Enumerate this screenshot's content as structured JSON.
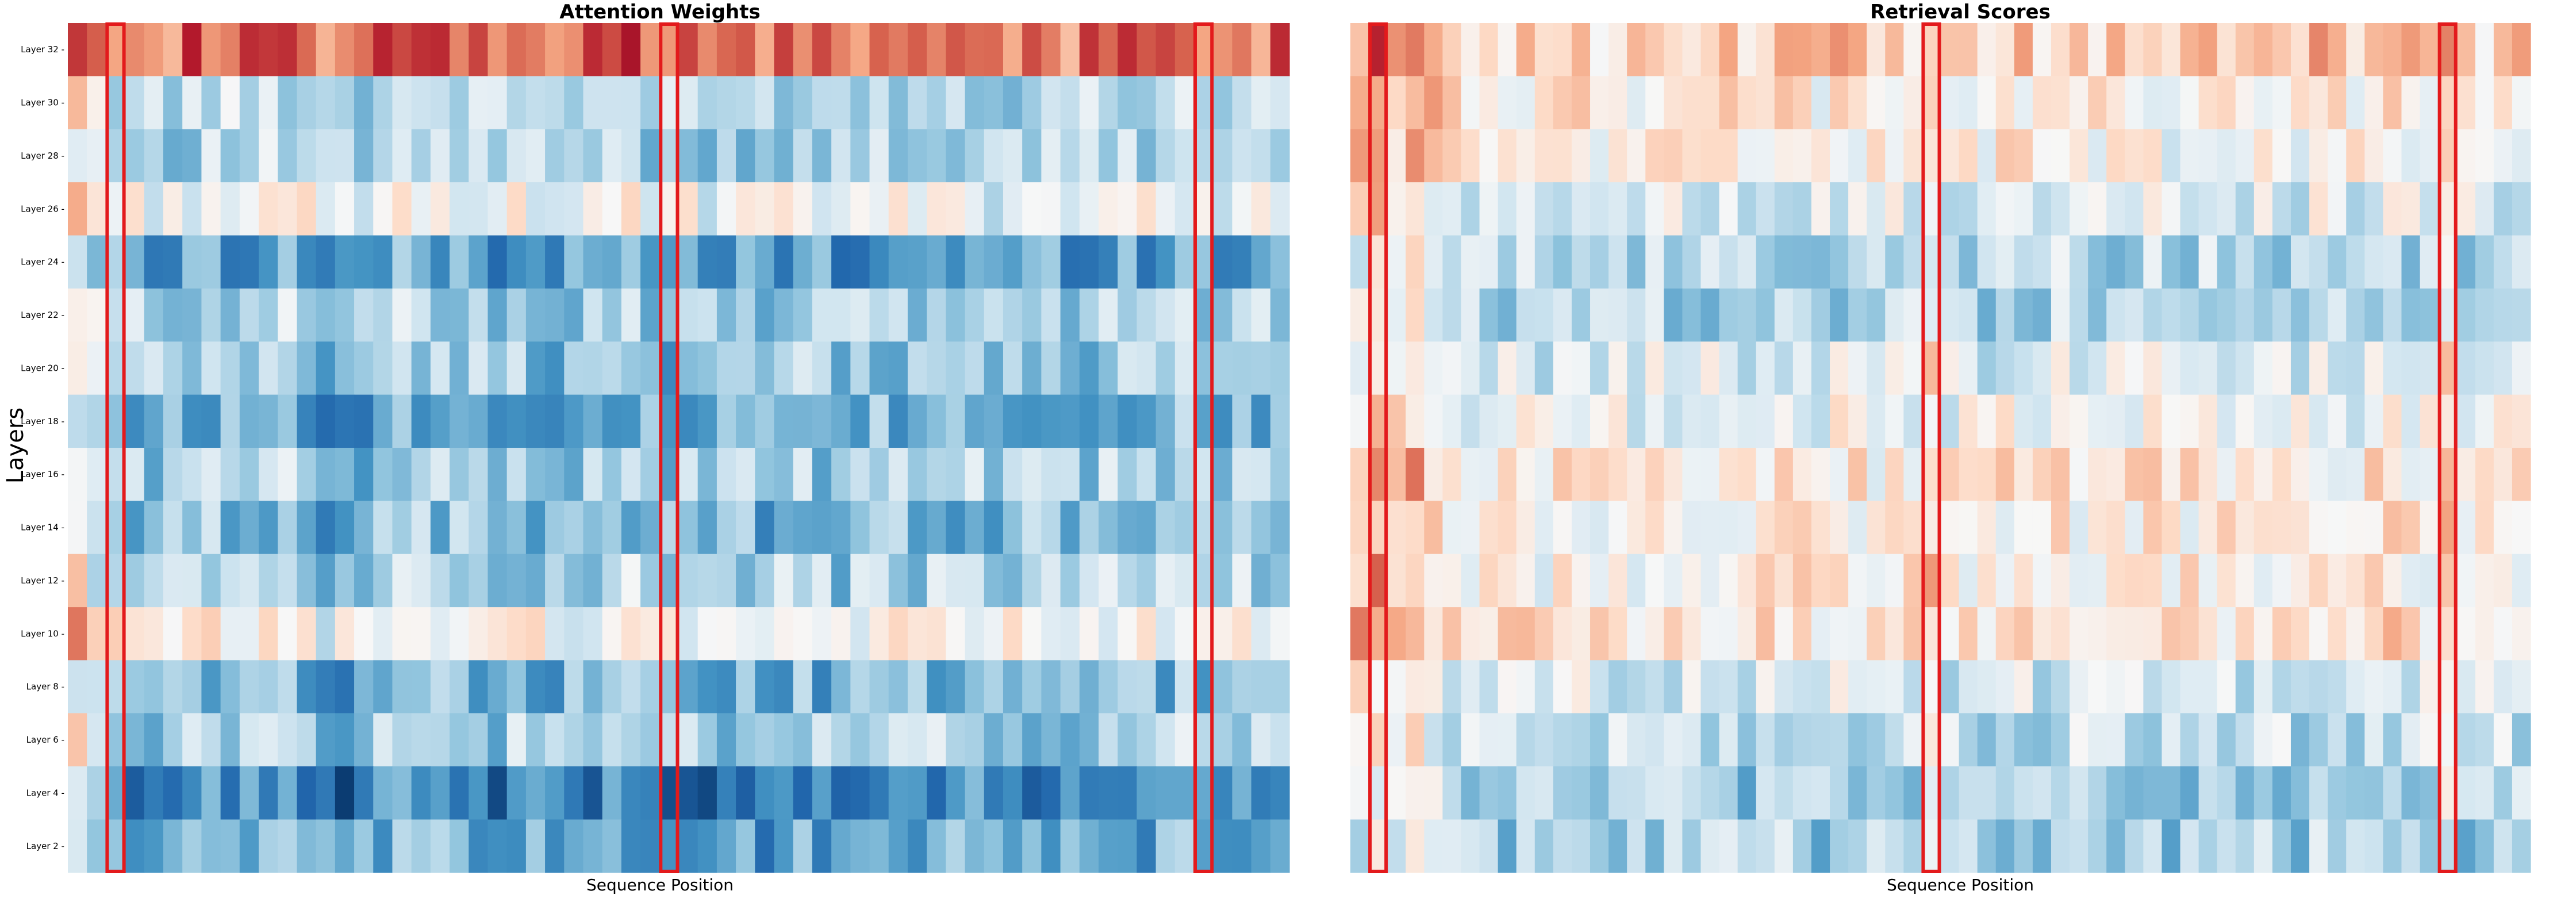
{
  "chart_data": [
    {
      "type": "heatmap",
      "title": "Attention Weights",
      "xlabel": "Sequence Position",
      "ylabel": "Layers",
      "row_labels": [
        "Layer 32",
        "Layer 30",
        "Layer 28",
        "Layer 26",
        "Layer 24",
        "Layer 22",
        "Layer 20",
        "Layer 18",
        "Layer 16",
        "Layer 14",
        "Layer 12",
        "Layer 10",
        "Layer 8",
        "Layer 6",
        "Layer 4",
        "Layer 2"
      ],
      "n_columns": 64,
      "colormap": "RdBu_r",
      "highlight_columns": [
        2,
        31,
        59
      ],
      "highlight_color": "#e31a1c",
      "layer_profile": [
        0.85,
        -0.22,
        -0.3,
        0.06,
        -0.62,
        -0.3,
        -0.38,
        -0.55,
        -0.33,
        -0.45,
        -0.28,
        0.12,
        -0.5,
        -0.32,
        -0.78,
        -0.58
      ],
      "position_profile": [
        0.55,
        0.2,
        -0.05,
        -0.1,
        -0.15,
        -0.2,
        -0.1,
        -0.05,
        -0.1,
        -0.15,
        -0.05,
        -0.05,
        -0.1,
        -0.35,
        -0.3,
        -0.25,
        -0.15,
        -0.1,
        -0.05,
        -0.1,
        -0.05,
        -0.1,
        -0.2,
        -0.1,
        -0.15,
        -0.25,
        -0.2,
        -0.15,
        -0.1,
        -0.05,
        -0.2,
        -0.25,
        -0.15,
        -0.35,
        -0.2,
        -0.15,
        -0.3,
        -0.15,
        -0.1,
        -0.2,
        -0.35,
        -0.2,
        -0.1,
        -0.15,
        -0.2,
        -0.1,
        -0.15,
        -0.1,
        -0.25,
        -0.2,
        -0.15,
        -0.1,
        -0.2,
        -0.15,
        -0.1,
        -0.05,
        -0.15,
        -0.1,
        -0.05,
        -0.1,
        -0.15,
        -0.05,
        -0.15,
        -0.1
      ]
    },
    {
      "type": "heatmap",
      "title": "Retrieval Scores",
      "xlabel": "Sequence Position",
      "ylabel": "",
      "row_labels": [
        "",
        "",
        "",
        "",
        "",
        "",
        "",
        "",
        "",
        "",
        "",
        "",
        "",
        "",
        "",
        ""
      ],
      "n_columns": 64,
      "colormap": "RdBu_r",
      "highlight_columns": [
        1,
        31,
        59
      ],
      "highlight_color": "#e31a1c",
      "layer_profile": [
        0.3,
        0.1,
        0.05,
        -0.15,
        -0.35,
        -0.4,
        -0.12,
        -0.05,
        0.12,
        0.08,
        0.1,
        0.2,
        -0.2,
        -0.28,
        -0.42,
        -0.44
      ],
      "position_profile": [
        0.35,
        0.6,
        0.45,
        0.55,
        0.3,
        0.05,
        0,
        -0.05,
        0,
        0.05,
        -0.1,
        0,
        0.05,
        -0.05,
        0,
        -0.1,
        0.05,
        0,
        -0.05,
        0,
        0.05,
        -0.1,
        0,
        0.05,
        0,
        -0.1,
        0.05,
        0,
        -0.05,
        0,
        0.05,
        0.35,
        -0.05,
        0,
        -0.1,
        0.05,
        0,
        -0.05,
        0.05,
        0,
        0,
        -0.05,
        0.05,
        0,
        -0.1,
        0,
        0.05,
        0,
        -0.05,
        0.05,
        0,
        -0.1,
        0.1,
        0,
        -0.05,
        0,
        0.05,
        0,
        0,
        0.35,
        0,
        -0.05,
        0,
        0
      ]
    }
  ]
}
